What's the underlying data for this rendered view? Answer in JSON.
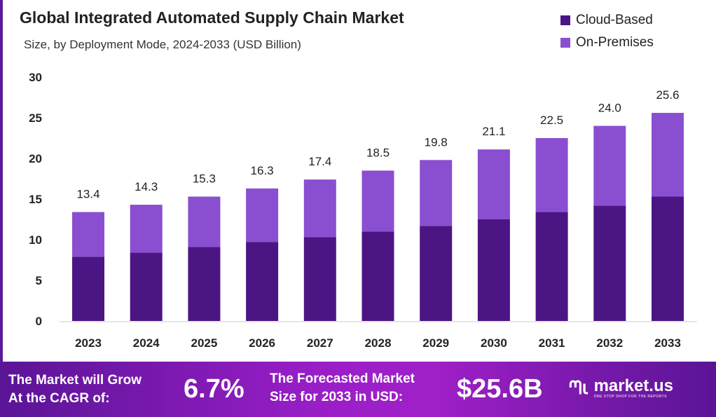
{
  "chart_data": {
    "type": "bar",
    "stacked": true,
    "title": "Global Integrated Automated Supply Chain Market",
    "subtitle": "Size, by Deployment Mode, 2024-2033 (USD Billion)",
    "categories": [
      "2023",
      "2024",
      "2025",
      "2026",
      "2027",
      "2028",
      "2029",
      "2030",
      "2031",
      "2032",
      "2033"
    ],
    "series": [
      {
        "name": "Cloud-Based",
        "color": "#4c1584",
        "values": [
          7.9,
          8.4,
          9.1,
          9.7,
          10.3,
          11.0,
          11.7,
          12.5,
          13.4,
          14.2,
          15.3
        ]
      },
      {
        "name": "On-Premises",
        "color": "#8a4fd0",
        "values": [
          5.5,
          5.9,
          6.2,
          6.6,
          7.1,
          7.5,
          8.1,
          8.6,
          9.1,
          9.8,
          10.3
        ]
      }
    ],
    "totals": [
      "13.4",
      "14.3",
      "15.3",
      "16.3",
      "17.4",
      "18.5",
      "19.8",
      "21.1",
      "22.5",
      "24.0",
      "25.6"
    ],
    "ylim": [
      0,
      30
    ],
    "yticks": [
      "0",
      "5",
      "10",
      "15",
      "20",
      "25",
      "30"
    ],
    "grid": false,
    "legend": "top-right"
  },
  "footer": {
    "cagr_label_1": "The Market will Grow",
    "cagr_label_2": "At the CAGR of:",
    "cagr_value": "6.7%",
    "forecast_label_1": "The Forecasted Market",
    "forecast_label_2": "Size for 2033 in USD:",
    "forecast_value": "$25.6B",
    "logo_name": "market.us",
    "logo_tagline": "ONE STOP SHOP FOR THE REPORTS"
  }
}
